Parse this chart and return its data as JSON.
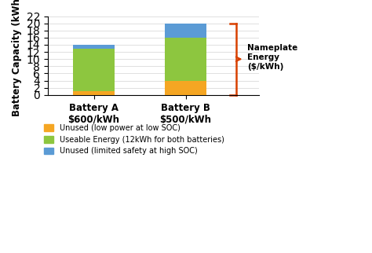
{
  "batteries": [
    "Battery A\n$600/kWh",
    "Battery B\n$500/kWh"
  ],
  "orange_values": [
    1,
    4
  ],
  "green_values": [
    12,
    12
  ],
  "blue_values": [
    1,
    4
  ],
  "orange_color": "#F5A623",
  "green_color": "#8DC63F",
  "blue_color": "#5B9BD5",
  "bar_width": 0.45,
  "ylim": [
    0,
    22
  ],
  "yticks": [
    0,
    2,
    4,
    6,
    8,
    10,
    12,
    14,
    16,
    18,
    20,
    22
  ],
  "ylabel": "Battery Capacity (kWh)",
  "legend_labels": [
    "Unused (low power at low SOC)",
    "Useable Energy (12kWh for both batteries)",
    "Unused (limited safety at high SOC)"
  ],
  "bracket_label": "Nameplate\nEnergy\n($/kWh)",
  "bracket_color": "#D84000"
}
